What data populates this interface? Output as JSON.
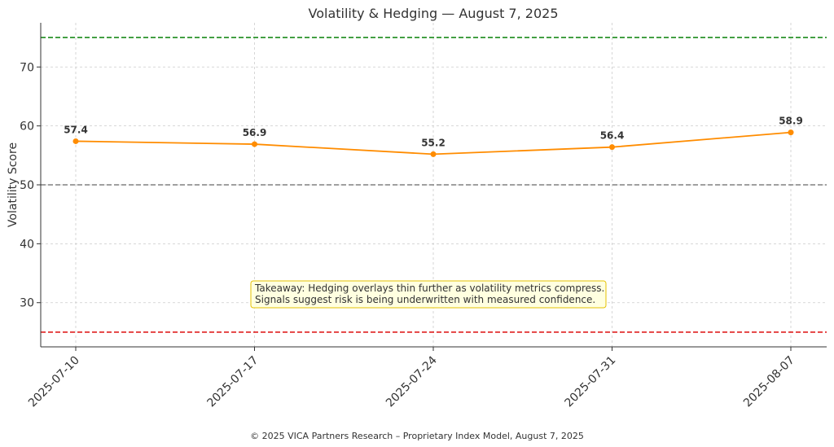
{
  "chart_data": {
    "type": "line",
    "title": "Volatility & Hedging — August 7, 2025",
    "ylabel": "Volatility Score",
    "xlabel": "",
    "x": [
      "2025-07-10",
      "2025-07-17",
      "2025-07-24",
      "2025-07-31",
      "2025-08-07"
    ],
    "series": [
      {
        "values": [
          57.4,
          56.9,
          55.2,
          56.4,
          58.9
        ],
        "color": "#ff8c00"
      }
    ],
    "ylim": [
      22.5,
      77.5
    ],
    "yticks": [
      30,
      40,
      50,
      60,
      70
    ],
    "reference_lines": [
      {
        "y": 75,
        "color": "#1a8a1a",
        "style": "dashed"
      },
      {
        "y": 50,
        "color": "#808080",
        "style": "dashed"
      },
      {
        "y": 25,
        "color": "#e02020",
        "style": "dashed"
      }
    ],
    "grid": true,
    "annotation": {
      "lines": [
        "Takeaway: Hedging overlays thin further as volatility metrics compress.",
        "Signals suggest risk is being underwritten with measured confidence."
      ],
      "background": "#ffffe0",
      "border": "#e6c200"
    }
  },
  "footer": "© 2025 VICA Partners Research – Proprietary Index Model, August 7, 2025"
}
